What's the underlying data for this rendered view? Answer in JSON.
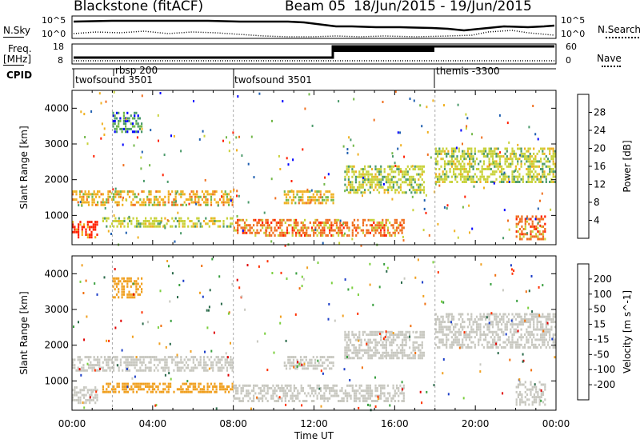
{
  "header": {
    "title": "Blackstone (fitACF)",
    "beam": "Beam 05",
    "dates": "18/Jun/2015 - 19/Jun/2015"
  },
  "top_panels": {
    "nsky_label": "N.Sky",
    "nsky_ticks": [
      "10^5",
      "10^0"
    ],
    "nsearch_label": "N.Search",
    "nsearch_ticks": [
      "10^5",
      "10^0"
    ],
    "freq_label_1": "Freq.",
    "freq_label_2": "[MHz]",
    "freq_ticks": [
      "18",
      "8"
    ],
    "nave_label": "Nave",
    "nave_ticks": [
      "60",
      "0"
    ],
    "cpid_label": "CPID",
    "cpid_programs": [
      {
        "name": "twofsound 3501",
        "start_hour": 0.1
      },
      {
        "name": "rbsp 200",
        "start_hour": 2.0
      },
      {
        "name": "twofsound 3501",
        "start_hour": 8.0
      },
      {
        "name": "themis -3300",
        "start_hour": 18.0
      }
    ]
  },
  "chart_data": [
    {
      "type": "heatmap",
      "title": "",
      "xlabel": "",
      "ylabel": "Slant Range [km]",
      "xlim": [
        0,
        24
      ],
      "ylim": [
        180,
        4500
      ],
      "y_ticks": [
        1000,
        2000,
        3000,
        4000
      ],
      "colorbar_label": "Power [dB]",
      "colorbar_ticks": [
        "4",
        "8",
        "12",
        "16",
        "20",
        "24",
        "28"
      ],
      "colorbar_colors": [
        "#0000ff",
        "#1f5fb0",
        "#4a9a6a",
        "#73b84a",
        "#c8d23a",
        "#f0b020",
        "#f07020",
        "#ff2000"
      ],
      "echo_bands": [
        {
          "t0": 0.0,
          "t1": 8.0,
          "r0": 1250,
          "r1": 1700,
          "power_db": 18
        },
        {
          "t0": 0.0,
          "t1": 1.3,
          "r0": 350,
          "r1": 850,
          "power_db": 26
        },
        {
          "t0": 1.5,
          "t1": 8.0,
          "r0": 650,
          "r1": 950,
          "power_db": 14
        },
        {
          "t0": 2.0,
          "t1": 3.5,
          "r0": 3300,
          "r1": 3900,
          "power_db": 8
        },
        {
          "t0": 8.0,
          "t1": 16.5,
          "r0": 400,
          "r1": 900,
          "power_db": 22
        },
        {
          "t0": 10.5,
          "t1": 13.0,
          "r0": 1300,
          "r1": 1700,
          "power_db": 18
        },
        {
          "t0": 13.5,
          "t1": 17.5,
          "r0": 1600,
          "r1": 2400,
          "power_db": 16
        },
        {
          "t0": 18.0,
          "t1": 24.0,
          "r0": 1900,
          "r1": 2900,
          "power_db": 14
        },
        {
          "t0": 22.0,
          "t1": 23.5,
          "r0": 300,
          "r1": 1000,
          "power_db": 24
        }
      ]
    },
    {
      "type": "heatmap",
      "title": "",
      "xlabel": "Time UT",
      "ylabel": "Slant Range [km]",
      "xlim": [
        0,
        24
      ],
      "ylim": [
        180,
        4500
      ],
      "x_ticks": [
        "00:00",
        "04:00",
        "08:00",
        "12:00",
        "16:00",
        "20:00",
        "00:00"
      ],
      "y_ticks": [
        1000,
        2000,
        3000,
        4000
      ],
      "colorbar_label": "Velocity [m s^-1]",
      "colorbar_ticks": [
        "200",
        "100",
        "50",
        "15",
        "-15",
        "-50",
        "-100",
        "-200"
      ],
      "colorbar_colors": [
        "#1c3ec8",
        "#2a6a4a",
        "#3aa040",
        "#7bcf3e",
        "#c8c8c0",
        "#f0a020",
        "#f07010",
        "#ff3000",
        "#e00000"
      ],
      "echo_bands": [
        {
          "t0": 0.0,
          "t1": 8.0,
          "r0": 1250,
          "r1": 1700,
          "velocity": 0
        },
        {
          "t0": 0.0,
          "t1": 1.3,
          "r0": 350,
          "r1": 850,
          "velocity": 0
        },
        {
          "t0": 1.5,
          "t1": 8.0,
          "r0": 650,
          "r1": 950,
          "velocity": -40
        },
        {
          "t0": 2.0,
          "t1": 3.5,
          "r0": 3300,
          "r1": 3900,
          "velocity": -30
        },
        {
          "t0": 8.0,
          "t1": 16.5,
          "r0": 400,
          "r1": 900,
          "velocity": 0
        },
        {
          "t0": 10.5,
          "t1": 13.0,
          "r0": 1300,
          "r1": 1700,
          "velocity": 0
        },
        {
          "t0": 13.5,
          "t1": 17.5,
          "r0": 1600,
          "r1": 2400,
          "velocity": 0
        },
        {
          "t0": 18.0,
          "t1": 24.0,
          "r0": 1900,
          "r1": 2900,
          "velocity": 0
        },
        {
          "t0": 22.0,
          "t1": 23.5,
          "r0": 300,
          "r1": 1000,
          "velocity": 0
        }
      ]
    }
  ]
}
